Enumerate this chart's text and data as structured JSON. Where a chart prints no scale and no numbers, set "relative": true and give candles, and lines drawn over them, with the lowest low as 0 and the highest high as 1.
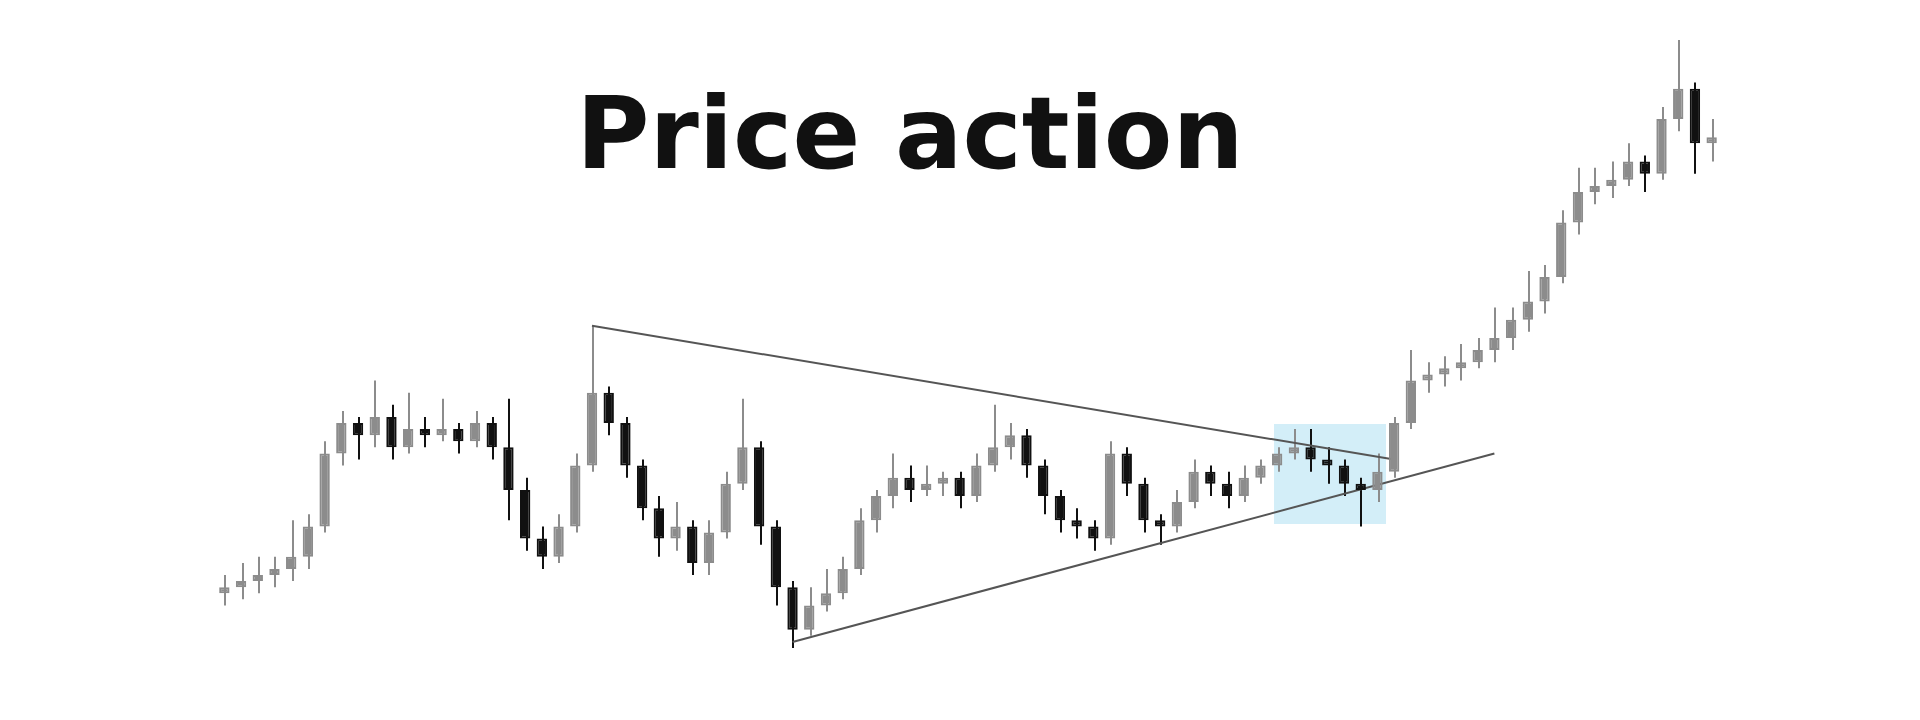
{
  "chart_data": {
    "type": "candlestick",
    "title": "Price action",
    "relative": true,
    "colors": [
      "#8c8c8c",
      "#8c8c8c",
      "#8c8c8c",
      "#8c8c8c",
      "#8c8c8c",
      "#8c8c8c",
      "#8c8c8c",
      "#8c8c8c",
      "#111111",
      "#8c8c8c",
      "#111111",
      "#8c8c8c",
      "#111111",
      "#8c8c8c",
      "#111111",
      "#8c8c8c",
      "#111111",
      "#111111",
      "#111111",
      "#111111",
      "#8c8c8c",
      "#8c8c8c",
      "#8c8c8c",
      "#111111",
      "#111111",
      "#111111",
      "#111111",
      "#8c8c8c",
      "#111111",
      "#8c8c8c",
      "#8c8c8c",
      "#8c8c8c",
      "#111111",
      "#111111",
      "#111111",
      "#8c8c8c",
      "#8c8c8c",
      "#8c8c8c",
      "#8c8c8c",
      "#8c8c8c",
      "#8c8c8c",
      "#111111",
      "#8c8c8c",
      "#8c8c8c",
      "#111111",
      "#8c8c8c",
      "#8c8c8c",
      "#8c8c8c",
      "#111111",
      "#111111",
      "#111111",
      "#111111",
      "#111111",
      "#8c8c8c",
      "#111111",
      "#111111",
      "#111111",
      "#8c8c8c",
      "#8c8c8c",
      "#111111",
      "#111111",
      "#8c8c8c",
      "#8c8c8c",
      "#8c8c8c",
      "#8c8c8c",
      "#111111",
      "#111111",
      "#111111",
      "#111111",
      "#8c8c8c",
      "#8c8c8c",
      "#8c8c8c",
      "#8c8c8c",
      "#8c8c8c",
      "#8c8c8c",
      "#8c8c8c",
      "#8c8c8c",
      "#8c8c8c",
      "#8c8c8c",
      "#8c8c8c",
      "#8c8c8c",
      "#8c8c8c",
      "#8c8c8c",
      "#8c8c8c",
      "#8c8c8c",
      "#111111",
      "#8c8c8c",
      "#8c8c8c",
      "#111111",
      "#8c8c8c"
    ],
    "categories": [
      null,
      null,
      null,
      null,
      null,
      null,
      null,
      null,
      null,
      null,
      null,
      null,
      null,
      null,
      null,
      null,
      null,
      null,
      null,
      null,
      null,
      null,
      null,
      null,
      null,
      null,
      null,
      null,
      null,
      null,
      null,
      null,
      null,
      null,
      null,
      null,
      null,
      null,
      null,
      null,
      null,
      null,
      null,
      null,
      null,
      null,
      null,
      null,
      null,
      null,
      null,
      null,
      null,
      null,
      null,
      null,
      null,
      null,
      null,
      null,
      null,
      null,
      null,
      null,
      null,
      null,
      null,
      null,
      null,
      null,
      null,
      null,
      null,
      null,
      null,
      null,
      null,
      null,
      null,
      null,
      null,
      null,
      null,
      null,
      null,
      null,
      null,
      null,
      null,
      null
    ],
    "ohlc": [
      [
        0.09,
        0.12,
        0.07,
        0.1
      ],
      [
        0.1,
        0.14,
        0.08,
        0.11
      ],
      [
        0.11,
        0.15,
        0.09,
        0.12
      ],
      [
        0.12,
        0.15,
        0.1,
        0.13
      ],
      [
        0.13,
        0.21,
        0.11,
        0.15
      ],
      [
        0.15,
        0.22,
        0.13,
        0.2
      ],
      [
        0.2,
        0.34,
        0.19,
        0.32
      ],
      [
        0.32,
        0.39,
        0.3,
        0.37
      ],
      [
        0.37,
        0.38,
        0.31,
        0.35
      ],
      [
        0.35,
        0.44,
        0.33,
        0.38
      ],
      [
        0.38,
        0.4,
        0.31,
        0.33
      ],
      [
        0.33,
        0.42,
        0.32,
        0.36
      ],
      [
        0.36,
        0.38,
        0.33,
        0.35
      ],
      [
        0.35,
        0.41,
        0.34,
        0.36
      ],
      [
        0.36,
        0.37,
        0.32,
        0.34
      ],
      [
        0.34,
        0.39,
        0.33,
        0.37
      ],
      [
        0.37,
        0.38,
        0.31,
        0.33
      ],
      [
        0.33,
        0.41,
        0.21,
        0.26
      ],
      [
        0.26,
        0.28,
        0.16,
        0.18
      ],
      [
        0.18,
        0.2,
        0.13,
        0.15
      ],
      [
        0.15,
        0.22,
        0.14,
        0.2
      ],
      [
        0.2,
        0.32,
        0.19,
        0.3
      ],
      [
        0.3,
        0.53,
        0.29,
        0.42
      ],
      [
        0.42,
        0.43,
        0.35,
        0.37
      ],
      [
        0.37,
        0.38,
        0.28,
        0.3
      ],
      [
        0.3,
        0.31,
        0.21,
        0.23
      ],
      [
        0.23,
        0.25,
        0.15,
        0.18
      ],
      [
        0.18,
        0.24,
        0.16,
        0.2
      ],
      [
        0.2,
        0.21,
        0.12,
        0.14
      ],
      [
        0.14,
        0.21,
        0.12,
        0.19
      ],
      [
        0.19,
        0.29,
        0.18,
        0.27
      ],
      [
        0.27,
        0.41,
        0.26,
        0.33
      ],
      [
        0.33,
        0.34,
        0.17,
        0.2
      ],
      [
        0.2,
        0.21,
        0.07,
        0.1
      ],
      [
        0.1,
        0.11,
        0,
        0.03
      ],
      [
        0.03,
        0.1,
        0.02,
        0.07
      ],
      [
        0.07,
        0.13,
        0.06,
        0.09
      ],
      [
        0.09,
        0.15,
        0.08,
        0.13
      ],
      [
        0.13,
        0.23,
        0.12,
        0.21
      ],
      [
        0.21,
        0.26,
        0.19,
        0.25
      ],
      [
        0.25,
        0.32,
        0.23,
        0.28
      ],
      [
        0.28,
        0.3,
        0.24,
        0.26
      ],
      [
        0.26,
        0.3,
        0.25,
        0.27
      ],
      [
        0.27,
        0.29,
        0.25,
        0.28
      ],
      [
        0.28,
        0.29,
        0.23,
        0.25
      ],
      [
        0.25,
        0.32,
        0.24,
        0.3
      ],
      [
        0.3,
        0.4,
        0.29,
        0.33
      ],
      [
        0.33,
        0.37,
        0.31,
        0.35
      ],
      [
        0.35,
        0.36,
        0.28,
        0.3
      ],
      [
        0.3,
        0.31,
        0.22,
        0.25
      ],
      [
        0.25,
        0.26,
        0.19,
        0.21
      ],
      [
        0.21,
        0.23,
        0.18,
        0.2
      ],
      [
        0.2,
        0.21,
        0.16,
        0.18
      ],
      [
        0.18,
        0.34,
        0.17,
        0.32
      ],
      [
        0.32,
        0.33,
        0.25,
        0.27
      ],
      [
        0.27,
        0.28,
        0.19,
        0.21
      ],
      [
        0.21,
        0.22,
        0.17,
        0.2
      ],
      [
        0.2,
        0.26,
        0.19,
        0.24
      ],
      [
        0.24,
        0.31,
        0.23,
        0.29
      ],
      [
        0.29,
        0.3,
        0.25,
        0.27
      ],
      [
        0.27,
        0.29,
        0.23,
        0.25
      ],
      [
        0.25,
        0.3,
        0.24,
        0.28
      ],
      [
        0.28,
        0.31,
        0.27,
        0.3
      ],
      [
        0.3,
        0.33,
        0.29,
        0.32
      ],
      [
        0.32,
        0.36,
        0.31,
        0.33
      ],
      [
        0.33,
        0.36,
        0.29,
        0.31
      ],
      [
        0.31,
        0.33,
        0.27,
        0.3
      ],
      [
        0.3,
        0.31,
        0.25,
        0.27
      ],
      [
        0.27,
        0.28,
        0.2,
        0.26
      ],
      [
        0.26,
        0.32,
        0.24,
        0.29
      ],
      [
        0.29,
        0.38,
        0.28,
        0.37
      ],
      [
        0.37,
        0.49,
        0.36,
        0.44
      ],
      [
        0.44,
        0.47,
        0.42,
        0.45
      ],
      [
        0.45,
        0.48,
        0.43,
        0.46
      ],
      [
        0.46,
        0.5,
        0.44,
        0.47
      ],
      [
        0.47,
        0.51,
        0.46,
        0.49
      ],
      [
        0.49,
        0.56,
        0.47,
        0.51
      ],
      [
        0.51,
        0.56,
        0.49,
        0.54
      ],
      [
        0.54,
        0.62,
        0.52,
        0.57
      ],
      [
        0.57,
        0.63,
        0.55,
        0.61
      ],
      [
        0.61,
        0.72,
        0.6,
        0.7
      ],
      [
        0.7,
        0.79,
        0.68,
        0.75
      ],
      [
        0.75,
        0.79,
        0.73,
        0.76
      ],
      [
        0.76,
        0.8,
        0.74,
        0.77
      ],
      [
        0.77,
        0.83,
        0.76,
        0.8
      ],
      [
        0.8,
        0.81,
        0.75,
        0.78
      ],
      [
        0.78,
        0.89,
        0.77,
        0.87
      ],
      [
        0.87,
        1,
        0.85,
        0.92
      ],
      [
        0.92,
        0.93,
        0.78,
        0.83
      ],
      [
        0.83,
        0.87,
        0.8,
        0.84
      ]
    ],
    "series": [
      {
        "type": "line",
        "color": "#555555",
        "values": [
          null,
          null,
          null,
          null,
          null,
          null,
          null,
          null,
          null,
          null,
          null,
          null,
          null,
          null,
          null,
          null,
          null,
          null,
          null,
          null,
          null,
          null,
          0.53,
          null,
          null,
          null,
          null,
          null,
          null,
          null,
          null,
          null,
          null,
          null,
          null,
          null,
          null,
          null,
          null,
          null,
          null,
          null,
          null,
          null,
          null,
          null,
          null,
          null,
          null,
          null,
          null,
          null,
          null,
          null,
          null,
          null,
          null,
          null,
          null,
          null,
          null,
          null,
          null,
          null,
          null,
          null,
          null,
          null,
          null,
          null,
          0.31,
          null,
          null,
          null,
          null,
          null,
          null,
          null,
          null,
          null,
          null,
          null,
          null,
          null,
          null,
          null,
          null,
          null,
          null,
          null
        ]
      },
      {
        "type": "line",
        "color": "#555555",
        "values": [
          null,
          null,
          null,
          null,
          null,
          null,
          null,
          null,
          null,
          null,
          null,
          null,
          null,
          null,
          null,
          null,
          null,
          null,
          null,
          null,
          null,
          null,
          null,
          null,
          null,
          null,
          null,
          null,
          null,
          null,
          null,
          null,
          null,
          null,
          0.01,
          null,
          null,
          null,
          null,
          null,
          null,
          null,
          null,
          null,
          null,
          null,
          null,
          null,
          null,
          null,
          null,
          null,
          null,
          null,
          null,
          null,
          null,
          null,
          null,
          null,
          null,
          null,
          null,
          null,
          null,
          null,
          null,
          null,
          null,
          null,
          null,
          null,
          null,
          null,
          null,
          null,
          0.32,
          null,
          null,
          null,
          null,
          null,
          null,
          null,
          null,
          null,
          null,
          null,
          null,
          null
        ]
      }
    ]
  }
}
